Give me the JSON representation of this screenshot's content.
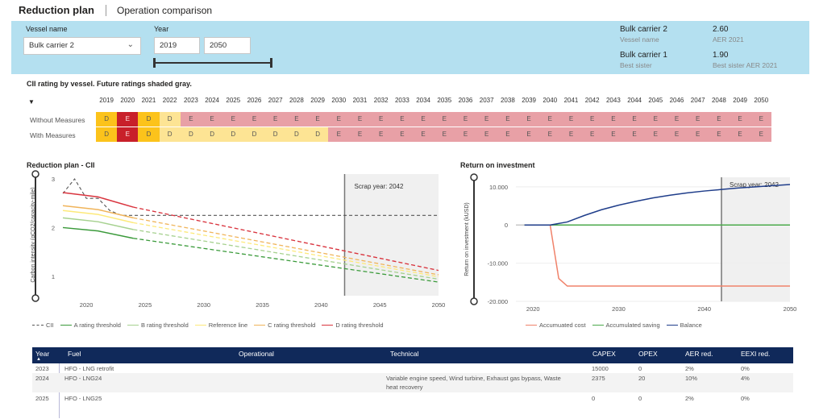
{
  "header": {
    "title": "Reduction plan",
    "tab": "Operation comparison"
  },
  "filters": {
    "vessel_label": "Vessel name",
    "vessel_value": "Bulk carrier 2",
    "year_label": "Year",
    "year_from": "2019",
    "year_to": "2050"
  },
  "info": {
    "vessel_name": "Bulk carrier 2",
    "vessel_sub": "Vessel name",
    "vessel_aer": "2.60",
    "vessel_aer_sub": "AER 2021",
    "sister_name": "Bulk carrier 1",
    "sister_sub": "Best sister",
    "sister_aer": "1.90",
    "sister_aer_sub": "Best sister AER 2021"
  },
  "cii": {
    "title": "CII rating by vessel. Future ratings shaded gray.",
    "sort_icon": "sort-down-icon",
    "years": [
      "2019",
      "2020",
      "2021",
      "2022",
      "2023",
      "2024",
      "2025",
      "2026",
      "2027",
      "2028",
      "2029",
      "2030",
      "2031",
      "2032",
      "2033",
      "2034",
      "2035",
      "2036",
      "2037",
      "2038",
      "2039",
      "2040",
      "2041",
      "2042",
      "2043",
      "2044",
      "2045",
      "2046",
      "2047",
      "2048",
      "2049",
      "2050"
    ],
    "rows": [
      {
        "label": "Without Measures",
        "ratings": [
          "D",
          "E",
          "D",
          "D",
          "E",
          "E",
          "E",
          "E",
          "E",
          "E",
          "E",
          "E",
          "E",
          "E",
          "E",
          "E",
          "E",
          "E",
          "E",
          "E",
          "E",
          "E",
          "E",
          "E",
          "E",
          "E",
          "E",
          "E",
          "E",
          "E",
          "E",
          "E"
        ]
      },
      {
        "label": "With Measures",
        "ratings": [
          "D",
          "E",
          "D",
          "D",
          "D",
          "D",
          "D",
          "D",
          "D",
          "D",
          "D",
          "E",
          "E",
          "E",
          "E",
          "E",
          "E",
          "E",
          "E",
          "E",
          "E",
          "E",
          "E",
          "E",
          "E",
          "E",
          "E",
          "E",
          "E",
          "E",
          "E",
          "E"
        ]
      }
    ],
    "colors": {
      "D_past": "#fcc31b",
      "E_past": "#c8202a",
      "D_future": "#fde494",
      "E_future": "#e8a0a6"
    }
  },
  "reduction_chart": {
    "section_title": "Reduction plan - CII",
    "chart_data": {
      "type": "line",
      "title": "Reduction plan - CII",
      "ylabel": "Carbon intensity (gCO2/capacity-mile)",
      "xlabel": "",
      "xlim": [
        2018,
        2050
      ],
      "ylim": [
        0.6,
        3.1
      ],
      "x_ticks": [
        "2020",
        "2025",
        "2030",
        "2035",
        "2040",
        "2045",
        "2050"
      ],
      "y_ticks": [
        "1",
        "2",
        "3"
      ],
      "annotation": "Scrap year: 2042",
      "scrap_year": 2042,
      "series": [
        {
          "name": "CII",
          "color": "#555555",
          "dash": true,
          "x": [
            2018,
            2019,
            2020,
            2021,
            2022,
            2023,
            2050
          ],
          "y": [
            2.7,
            3.0,
            2.6,
            2.6,
            2.35,
            2.25,
            2.25
          ]
        },
        {
          "name": "A rating threshold",
          "color": "#3a9a3a",
          "x": [
            2018,
            2021,
            2024,
            2050
          ],
          "y": [
            2.0,
            1.93,
            1.78,
            0.88
          ]
        },
        {
          "name": "B rating threshold",
          "color": "#a6d18f",
          "x": [
            2018,
            2021,
            2024,
            2050
          ],
          "y": [
            2.2,
            2.12,
            1.96,
            0.94
          ]
        },
        {
          "name": "Reference line",
          "color": "#fde97a",
          "x": [
            2018,
            2021,
            2024,
            2050
          ],
          "y": [
            2.35,
            2.27,
            2.1,
            0.99
          ]
        },
        {
          "name": "C rating threshold",
          "color": "#f0b45a",
          "x": [
            2018,
            2021,
            2024,
            2050
          ],
          "y": [
            2.45,
            2.37,
            2.2,
            1.03
          ]
        },
        {
          "name": "D rating threshold",
          "color": "#d9343e",
          "x": [
            2018,
            2021,
            2024,
            2050
          ],
          "y": [
            2.72,
            2.63,
            2.42,
            1.12
          ]
        }
      ],
      "future_from": 2024,
      "legend": "bottom"
    }
  },
  "roi_chart": {
    "section_title": "Return on investment",
    "chart_data": {
      "type": "line",
      "title": "Return on investment",
      "ylabel": "Return on investment (kUSD)",
      "xlabel": "",
      "xlim": [
        2018,
        2050
      ],
      "ylim": [
        -20000,
        12500
      ],
      "x_ticks": [
        "2020",
        "2030",
        "2040",
        "2050"
      ],
      "y_ticks": [
        "10.000",
        "0",
        "-10.000",
        "-20.000"
      ],
      "y_tick_values": [
        10000,
        0,
        -10000,
        -20000
      ],
      "annotation": "Scrap year: 2042",
      "scrap_year": 2042,
      "series": [
        {
          "name": "Accumuated cost",
          "color": "#f0826a",
          "x": [
            2019,
            2022,
            2023,
            2024,
            2050
          ],
          "y": [
            0,
            0,
            -14000,
            -16000,
            -16000
          ]
        },
        {
          "name": "Accumulated saving",
          "color": "#4caa4c",
          "x": [
            2019,
            2050
          ],
          "y": [
            0,
            0
          ]
        },
        {
          "name": "Balance",
          "color": "#1f3d8a",
          "x": [
            2019,
            2022,
            2024,
            2026,
            2028,
            2030,
            2032,
            2034,
            2036,
            2038,
            2040,
            2042,
            2044,
            2046,
            2048,
            2050
          ],
          "y": [
            0,
            0,
            800,
            2500,
            4000,
            5200,
            6200,
            7100,
            7800,
            8400,
            8900,
            9300,
            9700,
            10000,
            10300,
            10600
          ]
        }
      ],
      "legend": "bottom"
    }
  },
  "table": {
    "headers": [
      "Year",
      "Fuel",
      "Operational",
      "Technical",
      "CAPEX",
      "OPEX",
      "AER red.",
      "EEXI red."
    ],
    "rows": [
      {
        "year": "2023",
        "fuel": "HFO - LNG retrofit",
        "operational": "",
        "technical": "",
        "technical2": "",
        "capex": "15000",
        "opex": "0",
        "aer": "2%",
        "eexi": "0%"
      },
      {
        "year": "2024",
        "fuel": "HFO - LNG24",
        "operational": "",
        "technical": "Variable engine speed, Wind turbine, Exhaust gas bypass, Waste",
        "technical2": "heat recovery",
        "capex": "2375",
        "opex": "20",
        "aer": "10%",
        "eexi": "4%"
      },
      {
        "year": "2025",
        "fuel": "HFO - LNG25",
        "operational": "",
        "technical": "",
        "technical2": "",
        "capex": "0",
        "opex": "0",
        "aer": "2%",
        "eexi": "0%"
      }
    ]
  }
}
